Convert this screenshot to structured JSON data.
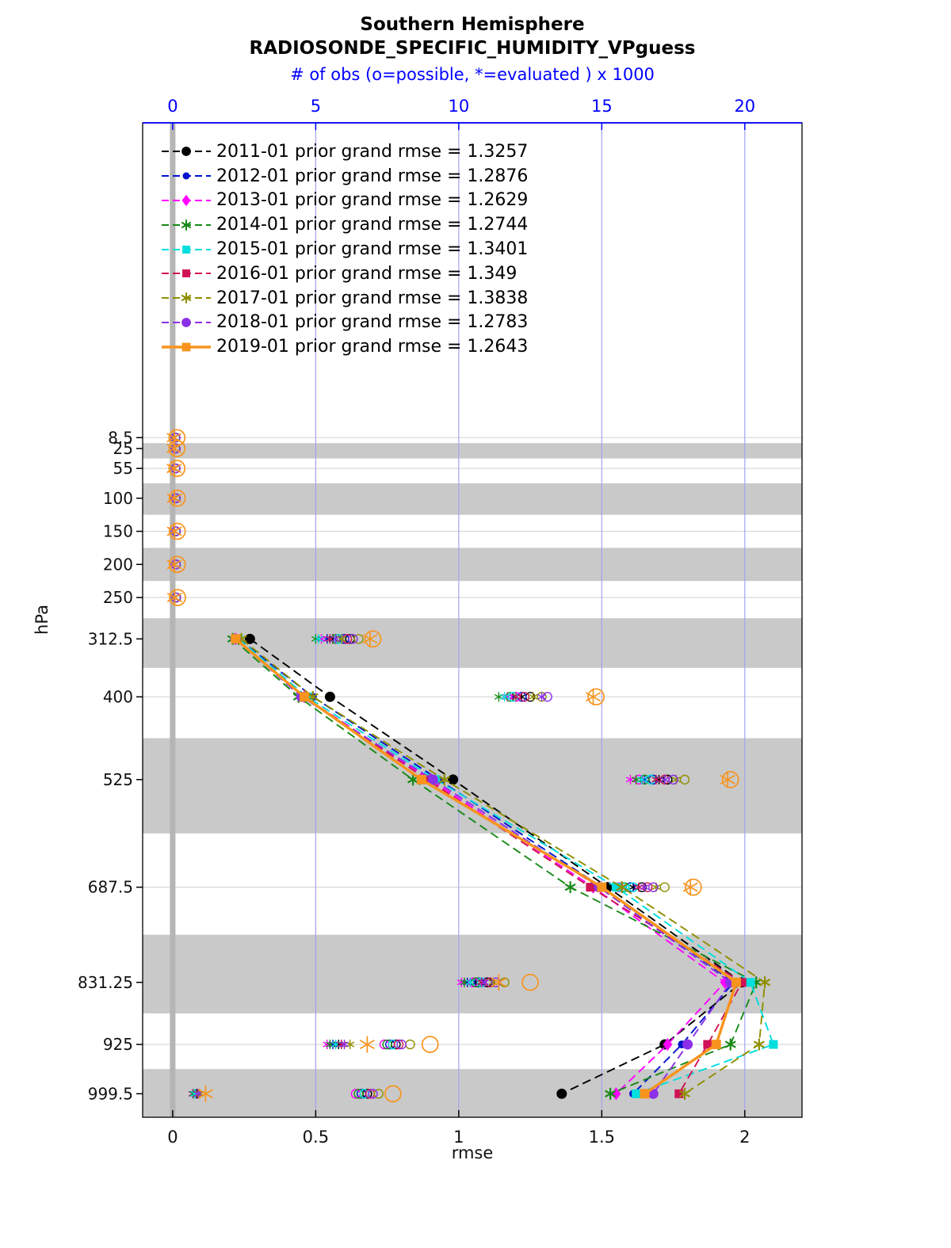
{
  "chart_data": {
    "type": "line",
    "title": "Southern Hemisphere",
    "subtitle": "RADIOSONDE_SPECIFIC_HUMIDITY_VPguess",
    "top_axis": {
      "label": "# of obs (o=possible, *=evaluated ) x 1000",
      "color": "#0000ff",
      "tick_values": [
        0,
        5,
        10,
        15,
        20
      ],
      "tick_labels": [
        "0",
        "5",
        "10",
        "15",
        "20"
      ],
      "min": -1.05,
      "max": 22.0
    },
    "bottom_axis": {
      "label": "rmse",
      "tick_values": [
        0,
        0.5,
        1,
        1.5,
        2
      ],
      "tick_labels": [
        "0",
        "0.5",
        "1",
        "1.5",
        "2"
      ],
      "min": -0.105,
      "max": 2.2
    },
    "left_axis": {
      "label": "hPa",
      "tick_values": [
        8.5,
        25,
        55,
        100,
        150,
        200,
        250,
        312.5,
        400,
        525,
        687.5,
        831.25,
        925,
        999.5
      ],
      "tick_labels": [
        "8.5",
        "25",
        "55",
        "100",
        "150",
        "200",
        "250",
        "312.5",
        "400",
        "525",
        "687.5",
        "831.25",
        "925",
        "999.5"
      ],
      "shaded_levels": [
        25,
        100,
        200,
        312.5,
        525,
        831.25,
        999.5
      ],
      "min": -467,
      "max": 1035
    },
    "rmse_levels": [
      312.5,
      400,
      525,
      687.5,
      831.25,
      925,
      999.5
    ],
    "obs_levels": [
      8.5,
      25,
      55,
      100,
      150,
      200,
      250,
      312.5,
      400,
      525,
      687.5,
      831.25,
      925,
      999.5
    ],
    "series": [
      {
        "name": "2011-01",
        "grand_rmse": 1.3257,
        "label": "2011-01 prior grand rmse = 1.3257",
        "color": "#000000",
        "marker": "circle",
        "marker_size": 6.5,
        "line_style": "dashed",
        "rmse": [
          0.27,
          0.55,
          0.98,
          1.52,
          1.99,
          1.72,
          1.36
        ],
        "obs_evaluated": [
          0.03,
          0.03,
          0.03,
          0.04,
          0.04,
          0.04,
          0.05,
          5.6,
          12.2,
          17.0,
          16.1,
          10.6,
          5.8,
          0.85
        ],
        "obs_possible": [
          0.1,
          0.1,
          0.1,
          0.11,
          0.11,
          0.11,
          0.12,
          6.2,
          12.5,
          17.3,
          16.4,
          11.0,
          7.8,
          6.8
        ]
      },
      {
        "name": "2012-01",
        "grand_rmse": 1.2876,
        "label": "2012-01 prior grand rmse = 1.2876",
        "color": "#0013cc",
        "marker": "circle",
        "marker_size": 5,
        "line_style": "dashed",
        "rmse": [
          0.23,
          0.49,
          0.93,
          1.5,
          1.96,
          1.78,
          1.61
        ],
        "obs_evaluated": [
          0.03,
          0.03,
          0.03,
          0.04,
          0.04,
          0.04,
          0.05,
          5.4,
          11.9,
          16.5,
          15.7,
          10.3,
          5.6,
          0.8
        ],
        "obs_possible": [
          0.1,
          0.1,
          0.1,
          0.11,
          0.11,
          0.11,
          0.12,
          6.0,
          12.2,
          16.8,
          16.0,
          10.7,
          7.6,
          6.6
        ]
      },
      {
        "name": "2013-01",
        "grand_rmse": 1.2629,
        "label": "2013-01 prior grand rmse = 1.2629",
        "color": "#ff00ff",
        "marker": "diamond",
        "marker_size": 6,
        "line_style": "dashed",
        "rmse": [
          0.22,
          0.46,
          0.9,
          1.47,
          1.93,
          1.73,
          1.55
        ],
        "obs_evaluated": [
          0.03,
          0.03,
          0.03,
          0.03,
          0.04,
          0.04,
          0.05,
          5.2,
          11.7,
          16.0,
          15.3,
          10.1,
          5.4,
          0.7
        ],
        "obs_possible": [
          0.09,
          0.09,
          0.1,
          0.1,
          0.11,
          0.11,
          0.12,
          5.8,
          12.0,
          16.3,
          15.6,
          10.5,
          7.4,
          6.4
        ]
      },
      {
        "name": "2014-01",
        "grand_rmse": 1.2744,
        "label": "2014-01 prior grand rmse = 1.2744",
        "color": "#178a17",
        "marker": "asterisk",
        "marker_size": 7.5,
        "line_style": "dashed",
        "rmse": [
          0.21,
          0.44,
          0.84,
          1.39,
          2.04,
          1.95,
          1.53
        ],
        "obs_evaluated": [
          0.02,
          0.02,
          0.03,
          0.03,
          0.04,
          0.04,
          0.04,
          5.0,
          11.4,
          16.2,
          15.5,
          10.2,
          5.5,
          0.72
        ],
        "obs_possible": [
          0.09,
          0.09,
          0.09,
          0.1,
          0.1,
          0.11,
          0.11,
          5.7,
          11.8,
          16.5,
          15.8,
          10.6,
          7.5,
          6.5
        ]
      },
      {
        "name": "2015-01",
        "grand_rmse": 1.3401,
        "label": "2015-01 prior grand rmse = 1.3401",
        "color": "#00dede",
        "marker": "square",
        "marker_size": 5.5,
        "line_style": "dashed",
        "rmse": [
          0.23,
          0.47,
          0.92,
          1.55,
          2.02,
          2.1,
          1.62
        ],
        "obs_evaluated": [
          0.02,
          0.02,
          0.03,
          0.03,
          0.04,
          0.04,
          0.04,
          5.1,
          11.6,
          16.4,
          15.8,
          10.4,
          5.7,
          0.78
        ],
        "obs_possible": [
          0.09,
          0.09,
          0.09,
          0.1,
          0.1,
          0.11,
          0.11,
          5.8,
          11.9,
          16.7,
          16.1,
          10.8,
          7.7,
          6.7
        ]
      },
      {
        "name": "2016-01",
        "grand_rmse": 1.349,
        "label": "2016-01 prior grand rmse = 1.349",
        "color": "#d01155",
        "marker": "square",
        "marker_size": 5.5,
        "line_style": "dashed",
        "rmse": [
          0.22,
          0.46,
          0.89,
          1.46,
          1.99,
          1.87,
          1.77
        ],
        "obs_evaluated": [
          0.03,
          0.03,
          0.03,
          0.04,
          0.04,
          0.04,
          0.05,
          5.5,
          12.0,
          16.9,
          16.3,
          10.8,
          5.9,
          0.88
        ],
        "obs_possible": [
          0.1,
          0.1,
          0.1,
          0.11,
          0.11,
          0.11,
          0.12,
          6.1,
          12.3,
          17.2,
          16.6,
          11.1,
          7.9,
          6.9
        ]
      },
      {
        "name": "2017-01",
        "grand_rmse": 1.3838,
        "label": "2017-01 prior grand rmse = 1.3838",
        "color": "#8f8f00",
        "marker": "asterisk",
        "marker_size": 7.5,
        "line_style": "dashed",
        "rmse": [
          0.24,
          0.49,
          0.95,
          1.57,
          2.07,
          2.05,
          1.79
        ],
        "obs_evaluated": [
          0.03,
          0.03,
          0.03,
          0.04,
          0.04,
          0.04,
          0.05,
          5.9,
          12.6,
          17.6,
          16.9,
          11.2,
          6.2,
          0.95
        ],
        "obs_possible": [
          0.1,
          0.1,
          0.1,
          0.11,
          0.11,
          0.11,
          0.12,
          6.5,
          12.9,
          17.9,
          17.2,
          11.6,
          8.3,
          7.2
        ]
      },
      {
        "name": "2018-01",
        "grand_rmse": 1.2783,
        "label": "2018-01 prior grand rmse = 1.2783",
        "color": "#8c2fe8",
        "marker": "circle",
        "marker_size": 6.5,
        "line_style": "dashed",
        "rmse": [
          0.22,
          0.45,
          0.91,
          1.49,
          1.95,
          1.8,
          1.68
        ],
        "obs_evaluated": [
          0.03,
          0.03,
          0.03,
          0.04,
          0.04,
          0.04,
          0.05,
          5.7,
          12.9,
          17.2,
          16.5,
          10.9,
          6.0,
          0.9
        ],
        "obs_possible": [
          0.1,
          0.1,
          0.1,
          0.11,
          0.11,
          0.11,
          0.12,
          6.3,
          13.1,
          17.5,
          16.8,
          11.3,
          8.0,
          7.0
        ]
      },
      {
        "name": "2019-01",
        "grand_rmse": 1.2643,
        "label": "2019-01 prior grand rmse = 1.2643",
        "color": "#f8941d",
        "marker": "square",
        "marker_size": 6,
        "line_style": "solid",
        "rmse": [
          0.22,
          0.46,
          0.87,
          1.5,
          1.97,
          1.9,
          1.65
        ],
        "obs_evaluated": [
          0.05,
          0.05,
          0.05,
          0.06,
          0.06,
          0.06,
          0.07,
          6.9,
          14.7,
          19.4,
          18.1,
          11.4,
          6.8,
          1.15
        ],
        "obs_possible": [
          0.15,
          0.15,
          0.15,
          0.16,
          0.16,
          0.16,
          0.17,
          7.0,
          14.8,
          19.5,
          18.2,
          12.5,
          9.0,
          7.7
        ]
      }
    ]
  }
}
